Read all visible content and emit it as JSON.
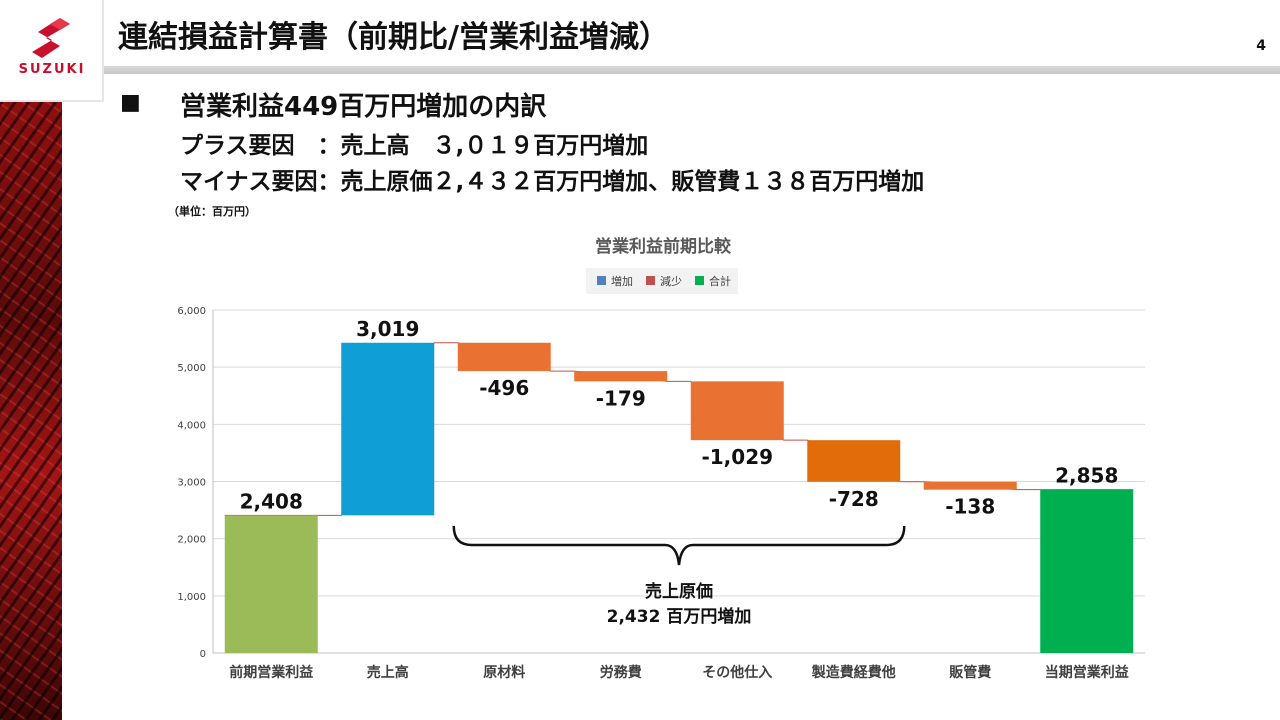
{
  "logo": {
    "wordmark": "SUZUKI"
  },
  "header": {
    "title": "連結損益計算書（前期比/営業利益増減）",
    "page_number": "4"
  },
  "body": {
    "bullet": "■",
    "heading": "営業利益449百万円増加の内訳",
    "plus_factor": "プラス要因　：売上高　３,０１９百万円増加",
    "minus_factor": "マイナス要因：売上原価２,４３２百万円増加、販管費１３８百万円増加",
    "unit_note": "（単位：百万円）"
  },
  "colors": {
    "increase": "#0f9ed5",
    "decrease": "#e97132",
    "decrease_dark": "#e36c0a",
    "total_start": "#9bbb59",
    "total_end": "#00b050",
    "connector": "#c0504d",
    "legend_increase": "#4f81bd",
    "legend_decrease": "#c0504d",
    "legend_total": "#00b050"
  },
  "chart_data": {
    "type": "waterfall",
    "title": "営業利益前期比較",
    "legend": [
      "増加",
      "減少",
      "合計"
    ],
    "legend_position": "top",
    "ylim": [
      0,
      6000
    ],
    "yticks": [
      0,
      1000,
      2000,
      3000,
      4000,
      5000,
      6000
    ],
    "ytick_labels": [
      "0",
      "1,000",
      "2,000",
      "3,000",
      "4,000",
      "5,000",
      "6,000"
    ],
    "grid": true,
    "categories": [
      "前期営業利益",
      "売上高",
      "原材料",
      "労務費",
      "その他仕入",
      "製造費経費他",
      "販管費",
      "当期営業利益"
    ],
    "values": [
      2408,
      3019,
      -496,
      -179,
      -1029,
      -728,
      -138,
      2858
    ],
    "kinds": [
      "total",
      "increase",
      "decrease",
      "decrease",
      "decrease",
      "decrease",
      "decrease",
      "total"
    ],
    "data_labels": [
      "2,408",
      "3,019",
      "-496",
      "-179",
      "-1,029",
      "-728",
      "-138",
      "2,858"
    ],
    "annotation": {
      "line1": "売上原価",
      "line2": "2,432 百万円増加",
      "spans": [
        "原材料",
        "製造費経費他"
      ]
    }
  }
}
